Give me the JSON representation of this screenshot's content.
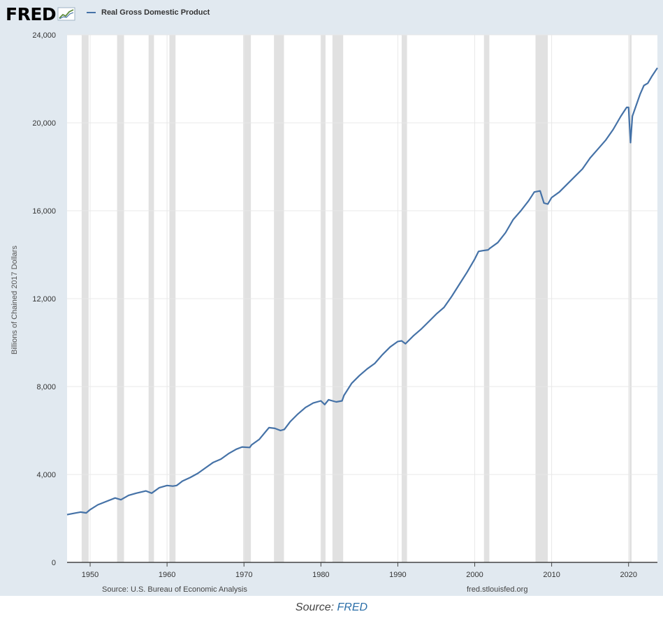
{
  "header": {
    "logo_text": "FRED",
    "logo_icon": "fred-chart-icon"
  },
  "footer": {
    "source_left": "Source: U.S. Bureau of Economic Analysis",
    "source_right": "fred.stlouisfed.org"
  },
  "caption": {
    "prefix": "Source: ",
    "link_text": "FRED"
  },
  "colors": {
    "line": "#4572a7",
    "recession": "#e1e1e1",
    "panel": "#e1e9f0",
    "plot_bg": "#ffffff",
    "grid": "#e8e8e8"
  },
  "chart_data": {
    "type": "line",
    "title": "",
    "xlabel": "",
    "ylabel": "Billions of Chained 2017 Dollars",
    "xlim": [
      1947.0,
      2023.75
    ],
    "ylim": [
      0,
      24000
    ],
    "yticks": [
      0,
      4000,
      8000,
      12000,
      16000,
      20000,
      24000
    ],
    "ytick_labels": [
      "0",
      "4,000",
      "8,000",
      "12,000",
      "16,000",
      "20,000",
      "24,000"
    ],
    "xticks": [
      1950,
      1960,
      1970,
      1980,
      1990,
      2000,
      2010,
      2020
    ],
    "xtick_labels": [
      "1950",
      "1960",
      "1970",
      "1980",
      "1990",
      "2000",
      "2010",
      "2020"
    ],
    "grid": true,
    "legend_position": "top-left",
    "recessions": [
      [
        1948.9,
        1949.8
      ],
      [
        1953.5,
        1954.4
      ],
      [
        1957.6,
        1958.3
      ],
      [
        1960.3,
        1961.1
      ],
      [
        1969.9,
        1970.9
      ],
      [
        1973.9,
        1975.2
      ],
      [
        1980.0,
        1980.6
      ],
      [
        1981.5,
        1982.9
      ],
      [
        1990.5,
        1991.2
      ],
      [
        2001.2,
        2001.9
      ],
      [
        2007.9,
        2009.5
      ],
      [
        2020.1,
        2020.4
      ]
    ],
    "series": [
      {
        "name": "Real Gross Domestic Product",
        "x": [
          1947.0,
          1948.0,
          1948.75,
          1949.5,
          1950.0,
          1951.0,
          1952.0,
          1953.25,
          1954.0,
          1955.0,
          1956.0,
          1957.25,
          1958.0,
          1959.0,
          1960.0,
          1960.75,
          1961.25,
          1962.0,
          1963.0,
          1964.0,
          1965.0,
          1966.0,
          1967.0,
          1968.0,
          1969.0,
          1969.75,
          1970.75,
          1971.0,
          1972.0,
          1973.25,
          1974.0,
          1974.75,
          1975.25,
          1976.0,
          1977.0,
          1978.0,
          1978.5,
          1979.0,
          1980.0,
          1980.5,
          1981.0,
          1981.5,
          1982.0,
          1982.75,
          1983.0,
          1984.0,
          1985.0,
          1986.0,
          1987.0,
          1988.0,
          1989.0,
          1990.0,
          1990.5,
          1991.0,
          1992.0,
          1993.0,
          1994.0,
          1995.0,
          1996.0,
          1997.0,
          1998.0,
          1999.0,
          2000.0,
          2000.5,
          2001.0,
          2001.75,
          2002.0,
          2003.0,
          2004.0,
          2005.0,
          2006.0,
          2007.0,
          2007.75,
          2008.5,
          2009.0,
          2009.5,
          2010.0,
          2011.0,
          2012.0,
          2013.0,
          2014.0,
          2015.0,
          2016.0,
          2017.0,
          2018.0,
          2019.0,
          2019.75,
          2020.0,
          2020.25,
          2020.5,
          2021.0,
          2021.5,
          2022.0,
          2022.5,
          2023.0,
          2023.75
        ],
        "values": [
          2170,
          2240,
          2290,
          2250,
          2400,
          2620,
          2760,
          2930,
          2850,
          3050,
          3150,
          3250,
          3150,
          3400,
          3500,
          3470,
          3500,
          3700,
          3860,
          4050,
          4300,
          4550,
          4700,
          4950,
          5150,
          5250,
          5230,
          5350,
          5600,
          6130,
          6100,
          6000,
          6050,
          6400,
          6750,
          7050,
          7150,
          7250,
          7350,
          7180,
          7400,
          7350,
          7300,
          7350,
          7600,
          8150,
          8500,
          8800,
          9050,
          9450,
          9800,
          10050,
          10080,
          9950,
          10300,
          10600,
          10950,
          11300,
          11600,
          12100,
          12650,
          13200,
          13800,
          14150,
          14180,
          14220,
          14300,
          14550,
          15000,
          15600,
          16000,
          16450,
          16850,
          16900,
          16350,
          16300,
          16600,
          16850,
          17200,
          17550,
          17900,
          18400,
          18800,
          19200,
          19700,
          20300,
          20700,
          20700,
          19100,
          20300,
          20800,
          21300,
          21700,
          21800,
          22100,
          22500
        ]
      }
    ]
  }
}
